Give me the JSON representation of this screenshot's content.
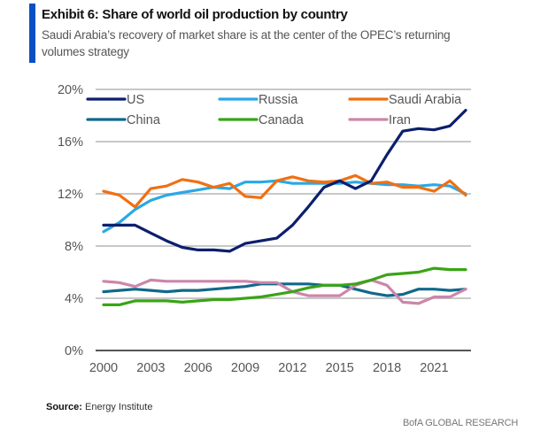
{
  "header": {
    "title": "Exhibit 6: Share of world oil production by country",
    "subtitle": "Saudi Arabia’s recovery of market share is at the center of the OPEC’s returning volumes strategy",
    "accent_color": "#0a4fc4"
  },
  "footer": {
    "source_label": "Source:",
    "source_text": " Energy Institute",
    "brand": "BofA GLOBAL RESEARCH"
  },
  "chart_data": {
    "type": "line",
    "title": "Exhibit 6: Share of world oil production by country",
    "xlabel": "",
    "ylabel": "",
    "x": [
      2000,
      2001,
      2002,
      2003,
      2004,
      2005,
      2006,
      2007,
      2008,
      2009,
      2010,
      2011,
      2012,
      2013,
      2014,
      2015,
      2016,
      2017,
      2018,
      2019,
      2020,
      2021,
      2022,
      2023
    ],
    "xlim": [
      2000,
      2023
    ],
    "xticks": [
      2000,
      2003,
      2006,
      2009,
      2012,
      2015,
      2018,
      2021
    ],
    "xtick_labels": [
      "2000",
      "2003",
      "2006",
      "2009",
      "2012",
      "2015",
      "2018",
      "2021"
    ],
    "ylim": [
      0,
      20
    ],
    "yticks": [
      0,
      4,
      8,
      12,
      16,
      20
    ],
    "ytick_labels": [
      "0%",
      "4%",
      "8%",
      "12%",
      "16%",
      "20%"
    ],
    "grid": "horizontal",
    "legend_position": "top",
    "series": [
      {
        "name": "US",
        "color": "#0c1f6e",
        "values": [
          9.6,
          9.6,
          9.6,
          9.0,
          8.4,
          7.9,
          7.7,
          7.7,
          7.6,
          8.2,
          8.4,
          8.6,
          9.6,
          11.0,
          12.5,
          13.0,
          12.4,
          13.0,
          15.0,
          16.8,
          17.0,
          16.9,
          17.2,
          18.4
        ]
      },
      {
        "name": "Russia",
        "color": "#2aa8e6",
        "values": [
          9.1,
          9.8,
          10.8,
          11.5,
          11.9,
          12.1,
          12.3,
          12.5,
          12.4,
          12.9,
          12.9,
          13.0,
          12.8,
          12.8,
          12.8,
          12.8,
          12.9,
          12.8,
          12.7,
          12.7,
          12.6,
          12.7,
          12.6,
          12.0
        ]
      },
      {
        "name": "Saudi Arabia",
        "color": "#f07012",
        "values": [
          12.2,
          11.9,
          11.0,
          12.4,
          12.6,
          13.1,
          12.9,
          12.5,
          12.8,
          11.8,
          11.7,
          13.0,
          13.3,
          13.0,
          12.9,
          13.0,
          13.4,
          12.8,
          12.9,
          12.5,
          12.5,
          12.2,
          13.0,
          11.9
        ]
      },
      {
        "name": "China",
        "color": "#11688a",
        "values": [
          4.5,
          4.6,
          4.7,
          4.6,
          4.5,
          4.6,
          4.6,
          4.7,
          4.8,
          4.9,
          5.1,
          5.1,
          5.1,
          5.1,
          5.0,
          5.0,
          4.7,
          4.4,
          4.2,
          4.3,
          4.7,
          4.7,
          4.6,
          4.7
        ]
      },
      {
        "name": "Canada",
        "color": "#3aa416",
        "values": [
          3.5,
          3.5,
          3.8,
          3.8,
          3.8,
          3.7,
          3.8,
          3.9,
          3.9,
          4.0,
          4.1,
          4.3,
          4.5,
          4.8,
          5.0,
          5.0,
          5.1,
          5.4,
          5.8,
          5.9,
          6.0,
          6.3,
          6.2,
          6.2
        ]
      },
      {
        "name": "Iran",
        "color": "#cc86aa",
        "values": [
          5.3,
          5.2,
          4.9,
          5.4,
          5.3,
          5.3,
          5.3,
          5.3,
          5.3,
          5.3,
          5.2,
          5.2,
          4.5,
          4.2,
          4.2,
          4.2,
          5.0,
          5.4,
          5.0,
          3.7,
          3.6,
          4.1,
          4.1,
          4.7
        ]
      }
    ]
  }
}
